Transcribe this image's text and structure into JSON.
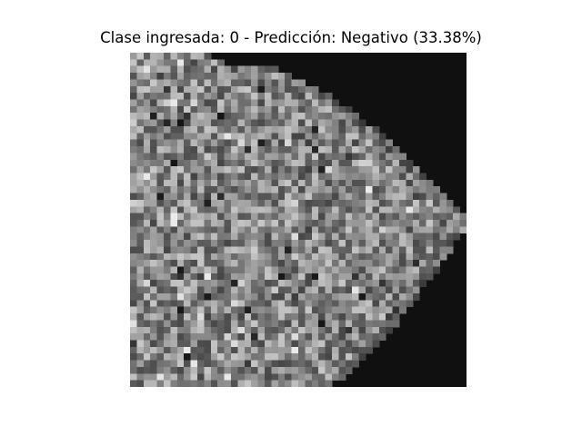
{
  "figure": {
    "title": "Clase ingresada: 0 - Predicción: Negativo (33.38%)"
  },
  "image": {
    "kind": "grayscale-texture-scan",
    "colormap": "gray",
    "background_color": "#101010"
  }
}
